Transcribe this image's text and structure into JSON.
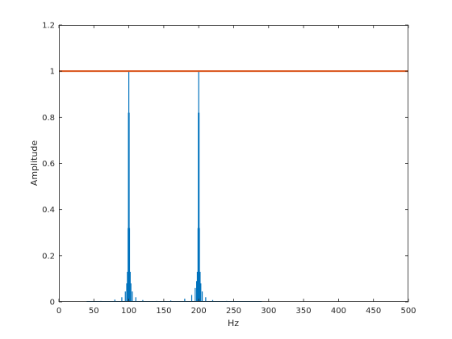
{
  "chart_data": {
    "type": "line",
    "title": "",
    "xlabel": "Hz",
    "ylabel": "Amplitude",
    "xlim": [
      0,
      500
    ],
    "ylim": [
      0,
      1.2
    ],
    "x_ticks": [
      0,
      50,
      100,
      150,
      200,
      250,
      300,
      350,
      400,
      450,
      500
    ],
    "y_ticks": [
      0,
      0.2,
      0.4,
      0.6,
      0.8,
      1,
      1.2
    ],
    "x_tick_labels": [
      "0",
      "50",
      "100",
      "150",
      "200",
      "250",
      "300",
      "350",
      "400",
      "450",
      "500"
    ],
    "y_tick_labels": [
      "0",
      "0.2",
      "0.4",
      "0.6",
      "0.8",
      "1",
      "1.2"
    ],
    "grid": false,
    "legend": "none",
    "series": [
      {
        "color": "#0072BD",
        "style": "stem",
        "peaks": [
          {
            "x": 100,
            "amplitude": 1.0
          },
          {
            "x": 200,
            "amplitude": 1.0
          }
        ],
        "x": [
          40,
          60,
          80,
          90,
          95,
          97,
          98,
          99,
          99.5,
          100,
          100.5,
          101,
          102,
          103,
          105,
          110,
          120,
          140,
          160,
          180,
          190,
          195,
          197,
          198,
          199,
          199.5,
          200,
          200.5,
          201,
          202,
          203,
          205,
          210,
          220,
          240,
          260,
          280,
          290
        ],
        "y": [
          0.002,
          0.004,
          0.01,
          0.02,
          0.045,
          0.08,
          0.13,
          0.32,
          0.82,
          1.0,
          0.82,
          0.32,
          0.13,
          0.08,
          0.045,
          0.02,
          0.008,
          0.004,
          0.006,
          0.014,
          0.03,
          0.06,
          0.09,
          0.13,
          0.32,
          0.82,
          1.0,
          0.82,
          0.32,
          0.13,
          0.08,
          0.045,
          0.02,
          0.008,
          0.004,
          0.003,
          0.002,
          0.001
        ]
      },
      {
        "color": "#D95319",
        "style": "line",
        "x": [
          0,
          500
        ],
        "y": [
          1,
          1
        ]
      }
    ]
  }
}
